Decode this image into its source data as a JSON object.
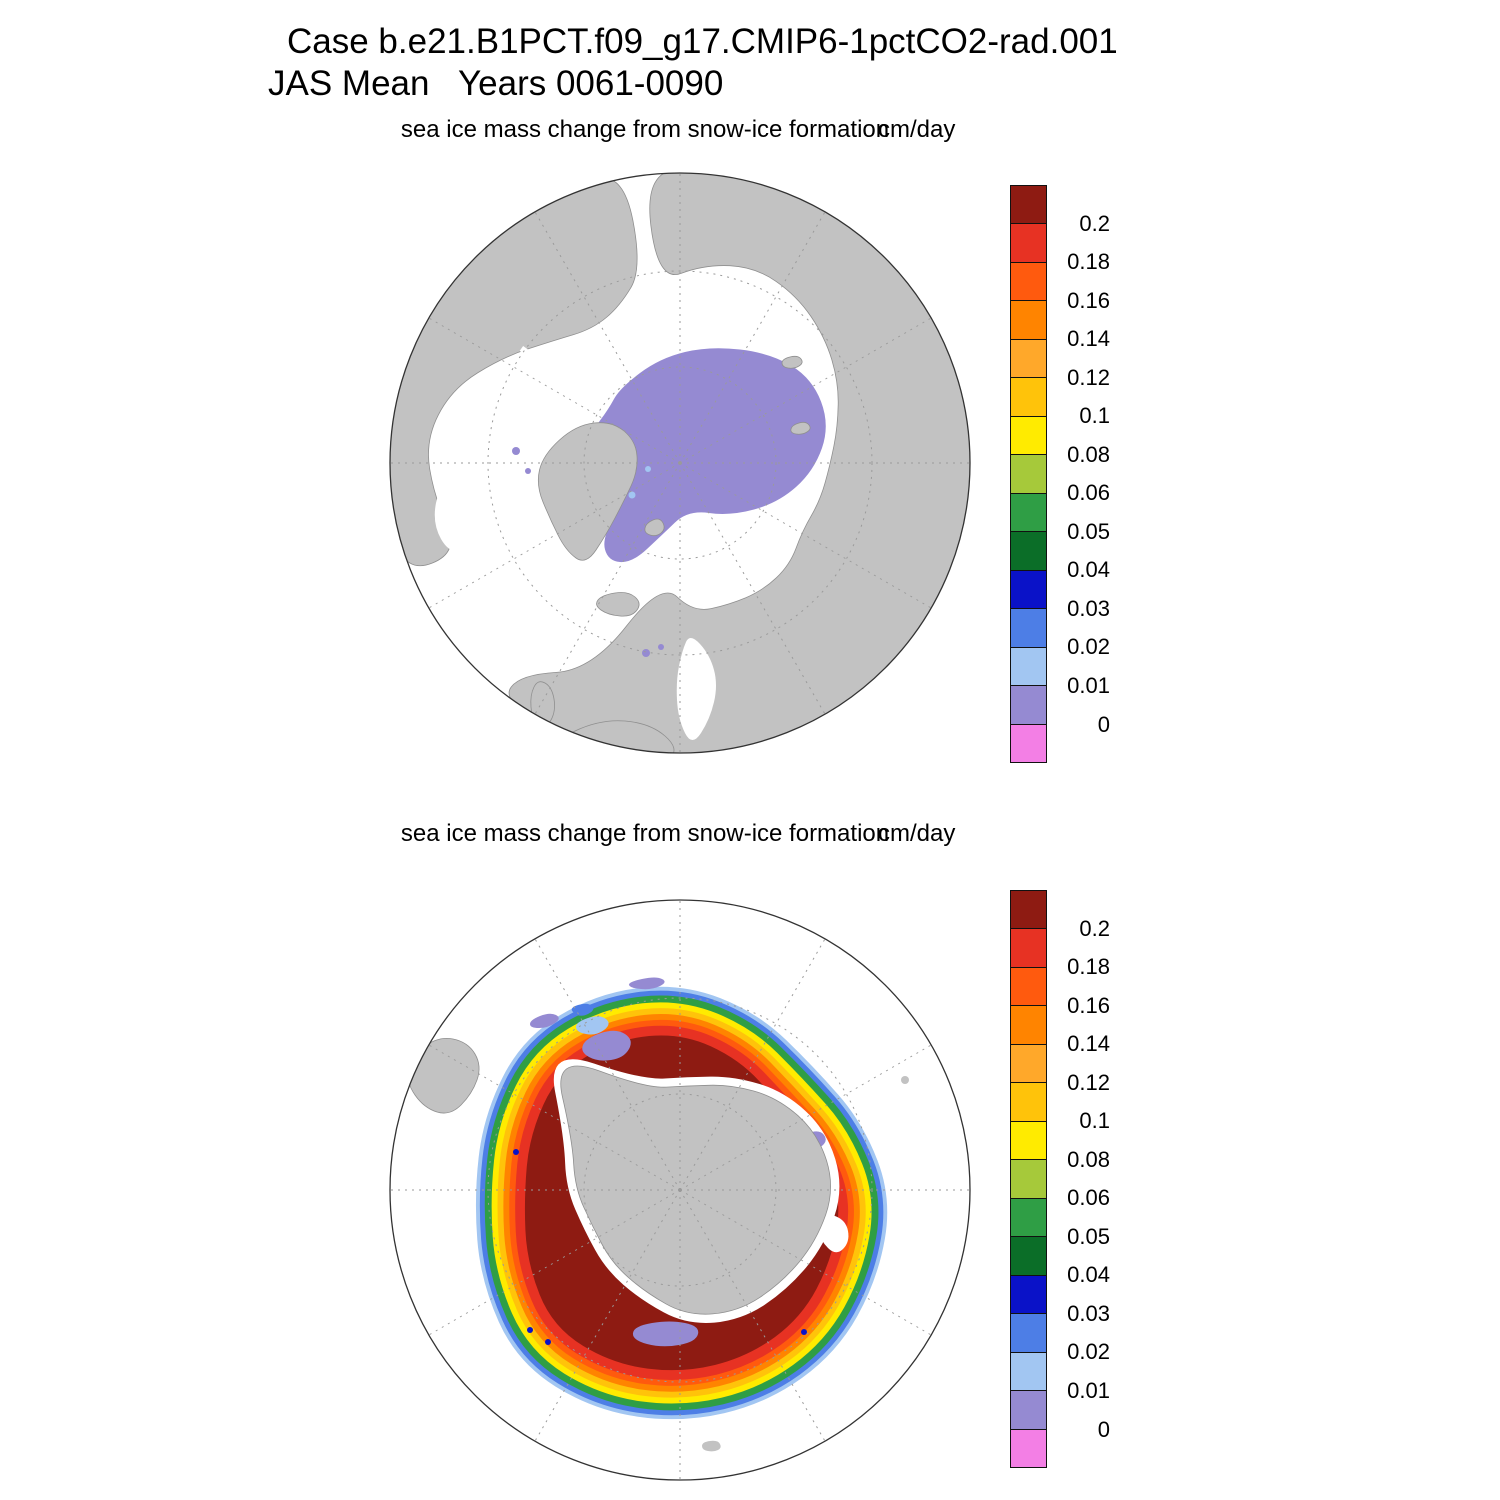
{
  "title": {
    "line1": "Case b.e21.B1PCT.f09_g17.CMIP6-1pctCO2-rad.001",
    "line2": "JAS Mean   Years 0061-0090"
  },
  "panels": {
    "north": {
      "subtitle": "sea ice mass change from snow-ice formation",
      "units": "cm/day"
    },
    "south": {
      "subtitle": "sea ice mass change from snow-ice formation",
      "units": "cm/day"
    }
  },
  "colorbar": {
    "labels": [
      "0.2",
      "0.18",
      "0.16",
      "0.14",
      "0.12",
      "0.1",
      "0.08",
      "0.06",
      "0.05",
      "0.04",
      "0.03",
      "0.02",
      "0.01",
      "0"
    ],
    "colors": [
      "#8e1b12",
      "#e73223",
      "#ff5a0e",
      "#ff8400",
      "#ffa82a",
      "#ffc30a",
      "#ffeb00",
      "#a6c93a",
      "#2f9e45",
      "#0b6e28",
      "#0a12c8",
      "#4d7ee6",
      "#a2c6f2",
      "#958ad2",
      "#f37fe5"
    ]
  },
  "palette": {
    "land": "#c2c2c2",
    "coast": "#8f8f8f",
    "graticule": "#9a9a9a",
    "outline": "#333333",
    "ocean": "#ffffff",
    "dark_red": "#8e1b12",
    "red": "#e73223",
    "orange_red": "#ff5a0e",
    "orange": "#ff8400",
    "light_orange": "#ffa82a",
    "amber": "#ffc30a",
    "yellow": "#ffeb00",
    "yellow_green": "#a6c93a",
    "green": "#2f9e45",
    "dark_green": "#0b6e28",
    "navy": "#0a12c8",
    "blue": "#4d7ee6",
    "light_blue": "#a2c6f2",
    "lavender": "#958ad2",
    "pink": "#f37fe5"
  },
  "chart_data": {
    "type": "heatmap",
    "title": "Case b.e21.B1PCT.f09_g17.CMIP6-1pctCO2-rad.001",
    "subtitle": "JAS Mean   Years 0061-0090",
    "season": "JAS",
    "years": "0061-0090",
    "variable": "sea ice mass change from snow-ice formation",
    "units": "cm/day",
    "legend_position": "right",
    "levels": [
      0,
      0.01,
      0.02,
      0.03,
      0.04,
      0.05,
      0.06,
      0.08,
      0.1,
      0.12,
      0.14,
      0.16,
      0.18,
      0.2
    ],
    "palette_top_to_bottom": [
      "#8e1b12",
      "#e73223",
      "#ff5a0e",
      "#ff8400",
      "#ffa82a",
      "#ffc30a",
      "#ffeb00",
      "#a6c93a",
      "#2f9e45",
      "#0b6e28",
      "#0a12c8",
      "#4d7ee6",
      "#a2c6f2",
      "#958ad2",
      "#f37fe5"
    ],
    "panels": [
      {
        "projection": "north-polar-stereographic",
        "description": "Central Arctic Ocean filled with values in the 0-0.01 cm/day bin (lavender), extending along the East Greenland coast and over the Siberian shelf seas; a few 0.01-0.02 cm/day (light blue) specks near the Canadian Archipelago and north of Scandinavia; remaining ocean blank (no snow-ice formation)."
      },
      {
        "projection": "south-polar-stereographic",
        "description": "Circumpolar sea-ice ring around Antarctica dominated by values above 0.2 cm/day (dark red), grading outward through 0.18-0.2 (red), 0.12-0.18 (orange), 0.08-0.12 (yellow), 0.04-0.08 (green) to 0.01-0.04 (blue) at the northern ice edge; 0-0.01 cm/day (lavender) patches in the Weddell Sea, along the Ross Sea coast and on the eastern coast; ring is thinnest northeast of the continent."
      }
    ]
  }
}
